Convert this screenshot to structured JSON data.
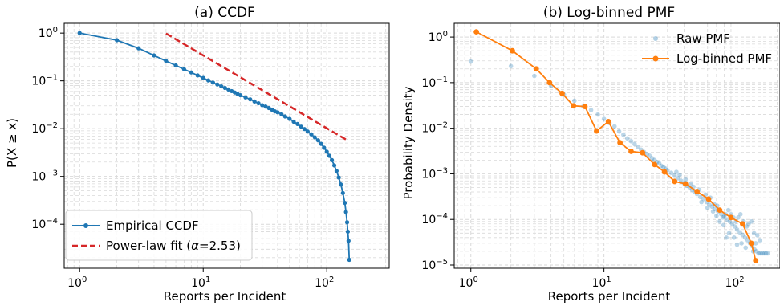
{
  "figure": {
    "colors": {
      "blue": "#1f77b4",
      "red": "#d62728",
      "orange": "#ff7f0e",
      "grid": "#d9d9d9"
    }
  },
  "chart_data": [
    {
      "type": "line",
      "title": "(a) CCDF",
      "xlabel": "Reports per Incident",
      "ylabel": "P(X ≥ x)",
      "xscale": "log",
      "yscale": "log",
      "xlim": [
        0.75,
        320
      ],
      "ylim": [
        1.2e-05,
        1.6
      ],
      "x_ticks": [
        {
          "value": 1,
          "base": "10",
          "exp": "0"
        },
        {
          "value": 10,
          "base": "10",
          "exp": "1"
        },
        {
          "value": 100,
          "base": "10",
          "exp": "2"
        }
      ],
      "y_ticks": [
        {
          "value": 0.0001,
          "base": "10",
          "exp": "−4"
        },
        {
          "value": 0.001,
          "base": "10",
          "exp": "−3"
        },
        {
          "value": 0.01,
          "base": "10",
          "exp": "−2"
        },
        {
          "value": 0.1,
          "base": "10",
          "exp": "−1"
        },
        {
          "value": 1,
          "base": "10",
          "exp": "0"
        }
      ],
      "grid": true,
      "legend": "lower-left",
      "series": [
        {
          "name": "Empirical CCDF",
          "style": "line-markers",
          "color": "#1f77b4",
          "points": [
            [
              1,
              1.0
            ],
            [
              2,
              0.71
            ],
            [
              3,
              0.48
            ],
            [
              4,
              0.34
            ],
            [
              5,
              0.26
            ],
            [
              6,
              0.21
            ],
            [
              7,
              0.175
            ],
            [
              8,
              0.15
            ],
            [
              9,
              0.13
            ],
            [
              10,
              0.115
            ],
            [
              11,
              0.102
            ],
            [
              12,
              0.092
            ],
            [
              13,
              0.084
            ],
            [
              14,
              0.077
            ],
            [
              15,
              0.071
            ],
            [
              16,
              0.066
            ],
            [
              17,
              0.061
            ],
            [
              18,
              0.057
            ],
            [
              19,
              0.053
            ],
            [
              20,
              0.05
            ],
            [
              22,
              0.045
            ],
            [
              24,
              0.041
            ],
            [
              26,
              0.037
            ],
            [
              28,
              0.034
            ],
            [
              30,
              0.031
            ],
            [
              32,
              0.029
            ],
            [
              34,
              0.027
            ],
            [
              36,
              0.025
            ],
            [
              38,
              0.023
            ],
            [
              40,
              0.022
            ],
            [
              43,
              0.02
            ],
            [
              46,
              0.018
            ],
            [
              50,
              0.016
            ],
            [
              54,
              0.014
            ],
            [
              58,
              0.0125
            ],
            [
              62,
              0.011
            ],
            [
              66,
              0.0098
            ],
            [
              70,
              0.0087
            ],
            [
              75,
              0.0076
            ],
            [
              80,
              0.0066
            ],
            [
              85,
              0.0057
            ],
            [
              90,
              0.0048
            ],
            [
              95,
              0.004
            ],
            [
              100,
              0.0033
            ],
            [
              105,
              0.0027
            ],
            [
              110,
              0.0022
            ],
            [
              115,
              0.0017
            ],
            [
              120,
              0.0013
            ],
            [
              125,
              0.00095
            ],
            [
              130,
              0.00068
            ],
            [
              135,
              0.00045
            ],
            [
              140,
              0.00028
            ],
            [
              143,
              0.00018
            ],
            [
              146,
              0.00011
            ],
            [
              148,
              7e-05
            ],
            [
              150,
              4.5e-05
            ],
            [
              152,
              1.8e-05
            ]
          ]
        },
        {
          "name": "Power-law fit (α=2.53)",
          "name_prefix": "Power-law fit (",
          "name_greek": "α",
          "name_suffix": "=2.53)",
          "style": "dashed",
          "color": "#d62728",
          "points": [
            [
              5,
              0.98
            ],
            [
              150,
              0.0055
            ]
          ]
        }
      ]
    },
    {
      "type": "scatter",
      "title": "(b) Log-binned PMF",
      "xlabel": "Reports per Incident",
      "ylabel": "Probability Density",
      "xscale": "log",
      "yscale": "log",
      "xlim": [
        0.75,
        210
      ],
      "ylim": [
        8.5e-06,
        2.0
      ],
      "x_ticks": [
        {
          "value": 1,
          "base": "10",
          "exp": "0"
        },
        {
          "value": 10,
          "base": "10",
          "exp": "1"
        },
        {
          "value": 100,
          "base": "10",
          "exp": "2"
        }
      ],
      "y_ticks": [
        {
          "value": 1e-05,
          "base": "10",
          "exp": "−5"
        },
        {
          "value": 0.0001,
          "base": "10",
          "exp": "−4"
        },
        {
          "value": 0.001,
          "base": "10",
          "exp": "−3"
        },
        {
          "value": 0.01,
          "base": "10",
          "exp": "−2"
        },
        {
          "value": 0.1,
          "base": "10",
          "exp": "−1"
        },
        {
          "value": 1,
          "base": "10",
          "exp": "0"
        }
      ],
      "grid": true,
      "legend": "top-right",
      "series": [
        {
          "name": "Raw PMF",
          "style": "markers-alpha",
          "color": "#1f77b4",
          "points": [
            [
              1,
              0.29
            ],
            [
              2,
              0.23
            ],
            [
              3,
              0.14
            ],
            [
              4,
              0.085
            ],
            [
              5,
              0.055
            ],
            [
              6,
              0.04
            ],
            [
              7,
              0.03
            ],
            [
              8,
              0.025
            ],
            [
              9,
              0.02
            ],
            [
              10,
              0.016
            ],
            [
              11,
              0.013
            ],
            [
              12,
              0.011
            ],
            [
              13,
              0.0085
            ],
            [
              14,
              0.0072
            ],
            [
              15,
              0.006
            ],
            [
              16,
              0.0052
            ],
            [
              17,
              0.0045
            ],
            [
              18,
              0.0039
            ],
            [
              19,
              0.0034
            ],
            [
              20,
              0.003
            ],
            [
              21,
              0.0027
            ],
            [
              22,
              0.0025
            ],
            [
              23,
              0.0022
            ],
            [
              24,
              0.002
            ],
            [
              25,
              0.0018
            ],
            [
              26,
              0.0017
            ],
            [
              27,
              0.0015
            ],
            [
              28,
              0.0014
            ],
            [
              29,
              0.0013
            ],
            [
              30,
              0.0012
            ],
            [
              32,
              0.00105
            ],
            [
              34,
              0.00092
            ],
            [
              36,
              0.0008
            ],
            [
              38,
              0.0007
            ],
            [
              40,
              0.00062
            ],
            [
              42,
              0.00055
            ],
            [
              44,
              0.0005
            ],
            [
              46,
              0.00044
            ],
            [
              48,
              0.0004
            ],
            [
              50,
              0.00036
            ],
            [
              53,
              0.00031
            ],
            [
              56,
              0.00028
            ],
            [
              59,
              0.00024
            ],
            [
              62,
              0.00021
            ],
            [
              65,
              0.00019
            ],
            [
              68,
              0.00017
            ],
            [
              72,
              0.00015
            ],
            [
              76,
              0.00013
            ],
            [
              80,
              0.000115
            ],
            [
              84,
              0.0001
            ],
            [
              88,
              9e-05
            ],
            [
              92,
              8e-05
            ],
            [
              96,
              7e-05
            ],
            [
              100,
              6e-05
            ],
            [
              105,
              5.2e-05
            ],
            [
              110,
              4.6e-05
            ],
            [
              115,
              4e-05
            ],
            [
              120,
              3.5e-05
            ],
            [
              125,
              3e-05
            ],
            [
              130,
              2.6e-05
            ],
            [
              135,
              2.2e-05
            ],
            [
              140,
              2e-05
            ],
            [
              145,
              1.8e-05
            ],
            [
              150,
              1.8e-05
            ],
            [
              155,
              1.8e-05
            ],
            [
              160,
              1.8e-05
            ],
            [
              165,
              1.8e-05
            ],
            [
              170,
              1.8e-05
            ],
            [
              54,
              0.00024
            ],
            [
              60,
              0.00018
            ],
            [
              66,
              0.00015
            ],
            [
              70,
              0.00012
            ],
            [
              74,
              9e-05
            ],
            [
              78,
              0.00011
            ],
            [
              82,
              0.00013
            ],
            [
              86,
              0.00016
            ],
            [
              90,
              0.00013
            ],
            [
              94,
              0.00011
            ],
            [
              98,
              9e-05
            ],
            [
              102,
              0.00011
            ],
            [
              106,
              0.00013
            ],
            [
              112,
              9e-05
            ],
            [
              118,
              7e-05
            ],
            [
              122,
              8e-05
            ],
            [
              128,
              9e-05
            ],
            [
              134,
              5e-05
            ],
            [
              138,
              3e-05
            ],
            [
              142,
              4.5e-05
            ],
            [
              148,
              3.5e-05
            ],
            [
              35,
              0.0011
            ],
            [
              37,
              0.00095
            ],
            [
              41,
              0.00075
            ],
            [
              45,
              0.0006
            ],
            [
              47,
              0.00052
            ],
            [
              52,
              0.00045
            ],
            [
              58,
              0.00035
            ],
            [
              63,
              0.0003
            ],
            [
              67,
              0.00022
            ],
            [
              71,
              0.0002
            ],
            [
              79,
              7.5e-05
            ],
            [
              83,
              4e-05
            ],
            [
              87,
              5e-05
            ],
            [
              95,
              4e-05
            ],
            [
              100,
              2.8e-05
            ],
            [
              108,
              3e-05
            ],
            [
              116,
              2.4e-05
            ],
            [
              132,
              2e-05
            ]
          ]
        },
        {
          "name": "Log-binned PMF",
          "style": "line-markers",
          "color": "#ff7f0e",
          "points": [
            [
              1.1,
              1.3
            ],
            [
              2.05,
              0.5
            ],
            [
              3.1,
              0.2
            ],
            [
              3.9,
              0.1
            ],
            [
              4.85,
              0.058
            ],
            [
              5.9,
              0.031
            ],
            [
              7.2,
              0.03
            ],
            [
              8.8,
              0.0087
            ],
            [
              10.8,
              0.014
            ],
            [
              13.2,
              0.0048
            ],
            [
              16,
              0.0031
            ],
            [
              19.5,
              0.0029
            ],
            [
              24,
              0.0016
            ],
            [
              28.5,
              0.0011
            ],
            [
              34,
              0.00068
            ],
            [
              41,
              0.0006
            ],
            [
              50,
              0.00041
            ],
            [
              61,
              0.00028
            ],
            [
              74,
              0.00016
            ],
            [
              90,
              0.00011
            ],
            [
              110,
              8e-05
            ],
            [
              128,
              3e-05
            ],
            [
              138,
              1.25e-05
            ]
          ]
        }
      ]
    }
  ]
}
